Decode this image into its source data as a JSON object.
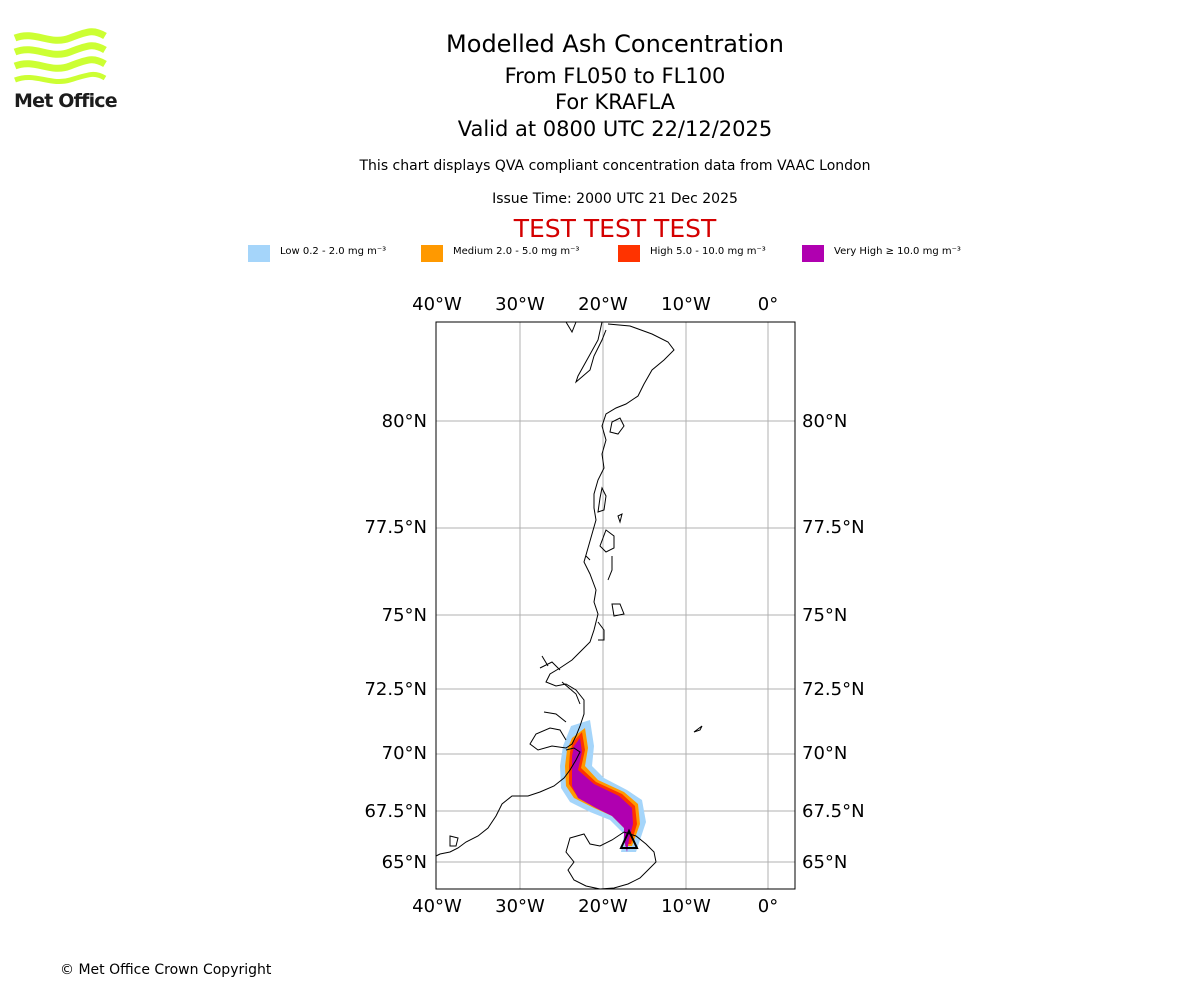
{
  "title": "Modelled Ash Concentration",
  "subtitle_levels": "From FL050 to FL100",
  "subtitle_volcano": "For KRAFLA",
  "subtitle_valid": "Valid at 0800 UTC 22/12/2025",
  "description": "This chart displays QVA compliant concentration data from VAAC London",
  "issue_time": "Issue Time: 2000 UTC 21 Dec 2025",
  "test_banner": "TEST TEST TEST",
  "logo": {
    "text": "Met Office",
    "color": "#ccff33"
  },
  "legend": [
    {
      "label": "Low 0.2 - 2.0 mg m⁻³",
      "color": "#a5d5fa"
    },
    {
      "label": "Medium 2.0 - 5.0 mg m⁻³",
      "color": "#ff9900"
    },
    {
      "label": "High 5.0 - 10.0 mg m⁻³",
      "color": "#ff3300"
    },
    {
      "label": "Very High ≥ 10.0 mg m⁻³",
      "color": "#b000b0"
    }
  ],
  "map": {
    "lon_labels": [
      "40°W",
      "30°W",
      "20°W",
      "10°W",
      "0°"
    ],
    "lat_labels": [
      "80°N",
      "77.5°N",
      "75°N",
      "72.5°N",
      "70°N",
      "67.5°N",
      "65°N"
    ],
    "volcano_marker": "triangle-icon",
    "grid": true
  },
  "footer": "© Met Office Crown Copyright"
}
